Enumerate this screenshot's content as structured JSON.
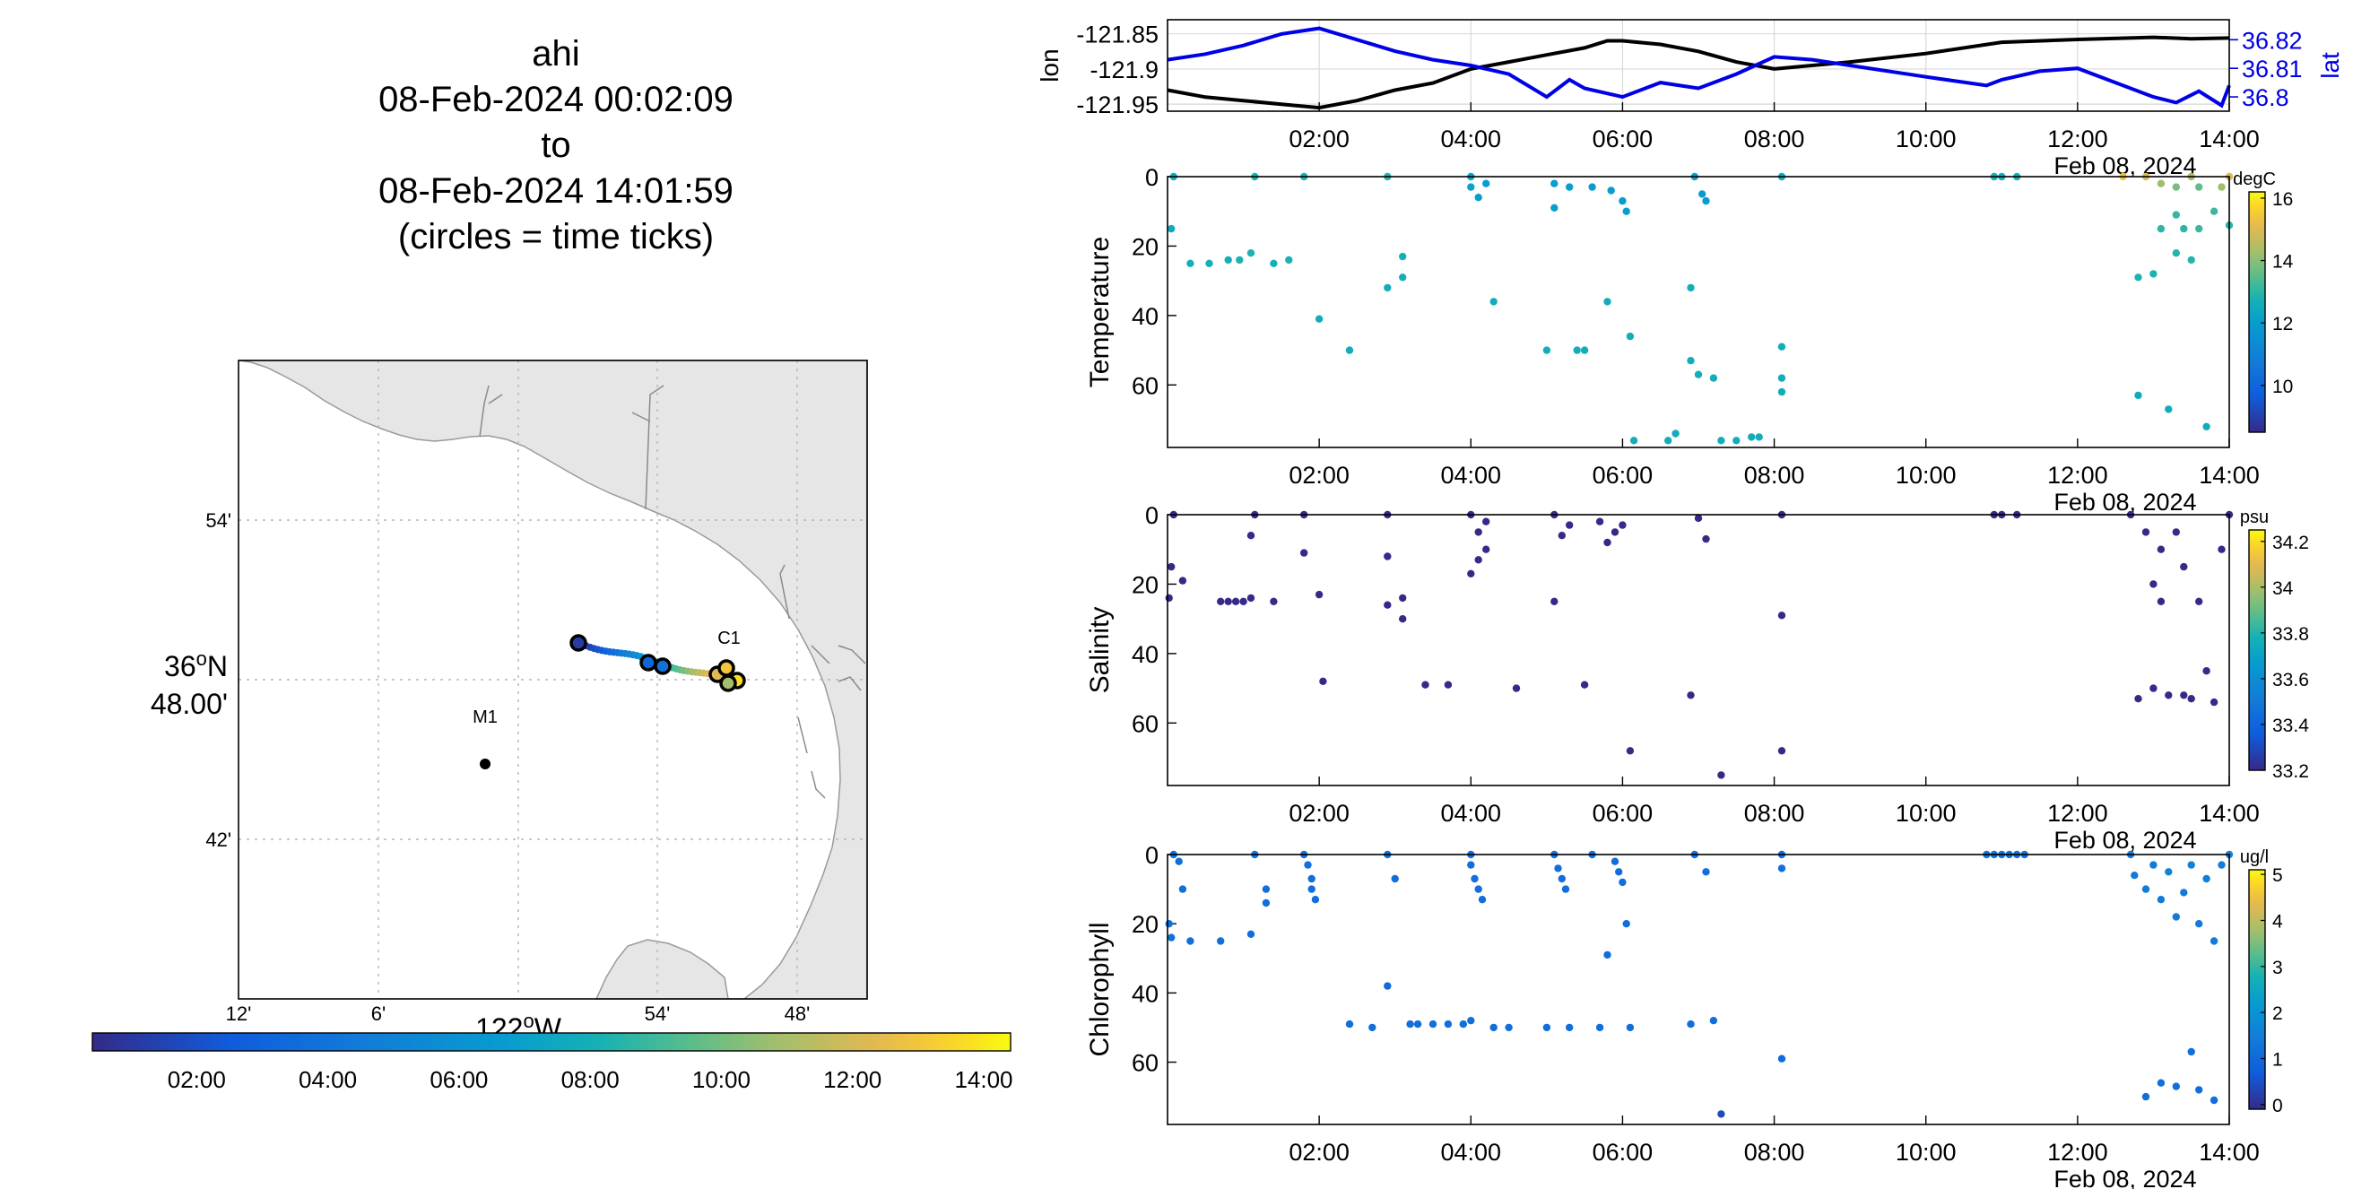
{
  "header": {
    "title_lines": [
      "ahi",
      "08-Feb-2024 00:02:09",
      "to",
      "08-Feb-2024 14:01:59",
      "(circles = time ticks)"
    ]
  },
  "map": {
    "lat_ticks": [
      "54'",
      "42'"
    ],
    "lat_center_label": "36",
    "lat_center_label_sup": "o",
    "lat_center_label_suffix": "N",
    "lat_center_minutes": "48.00'",
    "lon_ticks": [
      "12'",
      "6'",
      "54'",
      "48'"
    ],
    "lon_center_label": "122",
    "lon_center_label_sup": "o",
    "lon_center_label_suffix": "W",
    "stations": [
      {
        "name": "M1"
      },
      {
        "name": "C1"
      }
    ],
    "land_color": "#e6e6e6",
    "track_colormap": "parula"
  },
  "time_colorbar": {
    "ticks": [
      "02:00",
      "04:00",
      "06:00",
      "08:00",
      "10:00",
      "12:00",
      "14:00"
    ]
  },
  "date_label": "Feb 08, 2024",
  "chart_data": [
    {
      "type": "line",
      "x_unit": "hours since 08-Feb-2024 00:00",
      "xlim": [
        0,
        14
      ],
      "x_ticks": [
        "02:00",
        "04:00",
        "06:00",
        "08:00",
        "10:00",
        "12:00",
        "14:00"
      ],
      "ylabel_left": "lon",
      "ylabel_right": "lat",
      "left_ticks": [
        "-121.85",
        "-121.9",
        "-121.95"
      ],
      "right_ticks": [
        "36.82",
        "36.81",
        "36.8"
      ],
      "left_ylim": [
        -121.96,
        -121.83
      ],
      "right_ylim": [
        36.795,
        36.827
      ],
      "series": [
        {
          "axis": "left",
          "color": "#000000",
          "x": [
            0,
            0.5,
            1,
            1.5,
            2,
            2.5,
            3,
            3.5,
            4,
            4.5,
            5,
            5.5,
            5.8,
            6,
            6.5,
            7,
            7.5,
            8,
            8.5,
            9,
            10,
            11,
            12,
            13,
            13.5,
            14
          ],
          "y": [
            -121.93,
            -121.94,
            -121.945,
            -121.95,
            -121.955,
            -121.945,
            -121.93,
            -121.92,
            -121.9,
            -121.89,
            -121.88,
            -121.87,
            -121.86,
            -121.86,
            -121.865,
            -121.875,
            -121.89,
            -121.9,
            -121.895,
            -121.89,
            -121.878,
            -121.862,
            -121.858,
            -121.855,
            -121.857,
            -121.856
          ]
        },
        {
          "axis": "right",
          "color": "#0000e6",
          "x": [
            0,
            0.5,
            1,
            1.5,
            2,
            2.5,
            3,
            3.5,
            4,
            4.5,
            5,
            5.3,
            5.5,
            6,
            6.5,
            7,
            7.5,
            8,
            8.5,
            9,
            10,
            10.8,
            11,
            11.5,
            12,
            12.5,
            13,
            13.3,
            13.6,
            13.9,
            14
          ],
          "y": [
            36.813,
            36.815,
            36.818,
            36.822,
            36.824,
            36.82,
            36.816,
            36.813,
            36.811,
            36.808,
            36.8,
            36.806,
            36.803,
            36.8,
            36.805,
            36.803,
            36.808,
            36.814,
            36.813,
            36.811,
            36.807,
            36.804,
            36.806,
            36.809,
            36.81,
            36.805,
            36.8,
            36.798,
            36.802,
            36.797,
            36.804
          ]
        }
      ]
    },
    {
      "type": "scatter",
      "ylabel": "Temperature",
      "ylim": [
        78,
        0
      ],
      "y_ticks": [
        0,
        20,
        40,
        60
      ],
      "colorbar": {
        "unit": "degC",
        "ticks": [
          10,
          12,
          14,
          16
        ],
        "clim": [
          8.5,
          16.2
        ]
      },
      "points": [
        [
          0.05,
          15,
          12.5
        ],
        [
          0.08,
          0,
          12.6
        ],
        [
          0.3,
          25,
          12.7
        ],
        [
          0.55,
          25,
          12.7
        ],
        [
          0.8,
          24,
          12.7
        ],
        [
          0.95,
          24,
          12.8
        ],
        [
          1.1,
          22,
          12.8
        ],
        [
          1.15,
          0,
          12.8
        ],
        [
          1.4,
          25,
          12.7
        ],
        [
          1.6,
          24,
          12.8
        ],
        [
          1.8,
          0,
          12.8
        ],
        [
          2.0,
          41,
          12.6
        ],
        [
          2.4,
          50,
          12.6
        ],
        [
          2.9,
          0,
          12.9
        ],
        [
          2.9,
          32,
          12.6
        ],
        [
          3.1,
          23,
          12.7
        ],
        [
          3.1,
          29,
          12.6
        ],
        [
          4.0,
          0,
          12.2
        ],
        [
          4.0,
          3,
          12.2
        ],
        [
          4.1,
          6,
          12.0
        ],
        [
          4.2,
          2,
          12.0
        ],
        [
          4.3,
          36,
          12.6
        ],
        [
          5.0,
          50,
          12.6
        ],
        [
          5.1,
          2,
          12.0
        ],
        [
          5.1,
          9,
          12.0
        ],
        [
          5.3,
          3,
          12.0
        ],
        [
          5.4,
          50,
          12.6
        ],
        [
          5.5,
          50,
          12.6
        ],
        [
          5.6,
          3,
          12.0
        ],
        [
          5.8,
          36,
          12.6
        ],
        [
          5.85,
          4,
          12.0
        ],
        [
          6.0,
          7,
          12.0
        ],
        [
          6.05,
          10,
          12.0
        ],
        [
          6.1,
          46,
          12.6
        ],
        [
          6.15,
          76,
          12.6
        ],
        [
          6.6,
          76,
          12.6
        ],
        [
          6.7,
          74,
          12.6
        ],
        [
          6.9,
          32,
          12.6
        ],
        [
          6.9,
          53,
          12.6
        ],
        [
          6.95,
          0,
          12.2
        ],
        [
          7.0,
          57,
          12.6
        ],
        [
          7.05,
          5,
          12.0
        ],
        [
          7.1,
          7,
          12.0
        ],
        [
          7.2,
          58,
          12.6
        ],
        [
          7.3,
          76,
          12.6
        ],
        [
          7.5,
          76,
          12.6
        ],
        [
          7.7,
          75,
          12.6
        ],
        [
          7.8,
          75,
          12.6
        ],
        [
          8.1,
          0,
          12.4
        ],
        [
          8.1,
          49,
          12.6
        ],
        [
          8.1,
          58,
          12.6
        ],
        [
          8.1,
          62,
          12.6
        ],
        [
          10.9,
          0,
          12.7
        ],
        [
          11.0,
          0,
          12.7
        ],
        [
          11.2,
          0,
          12.7
        ],
        [
          12.6,
          0,
          15.4
        ],
        [
          12.8,
          29,
          12.8
        ],
        [
          12.8,
          63,
          12.5
        ],
        [
          12.9,
          0,
          15.0
        ],
        [
          13.0,
          28,
          12.8
        ],
        [
          13.1,
          2,
          14.2
        ],
        [
          13.1,
          15,
          13.0
        ],
        [
          13.2,
          67,
          12.5
        ],
        [
          13.3,
          3,
          13.8
        ],
        [
          13.3,
          11,
          13.1
        ],
        [
          13.3,
          22,
          12.9
        ],
        [
          13.4,
          15,
          13.0
        ],
        [
          13.5,
          0,
          14.3
        ],
        [
          13.5,
          24,
          12.9
        ],
        [
          13.6,
          3,
          13.6
        ],
        [
          13.6,
          15,
          13.2
        ],
        [
          13.7,
          72,
          12.5
        ],
        [
          13.8,
          10,
          13.2
        ],
        [
          13.9,
          3,
          14.2
        ],
        [
          14.0,
          0,
          15.0
        ],
        [
          14.0,
          14,
          13.0
        ]
      ]
    },
    {
      "type": "scatter",
      "ylabel": "Salinity",
      "ylim": [
        78,
        0
      ],
      "y_ticks": [
        0,
        20,
        40,
        60
      ],
      "colorbar": {
        "unit": "psu",
        "ticks": [
          33.2,
          33.4,
          33.6,
          33.8,
          34,
          34.2
        ],
        "clim": [
          33.2,
          34.25
        ]
      },
      "points": [
        [
          0.02,
          24,
          33.2
        ],
        [
          0.05,
          15,
          33.2
        ],
        [
          0.08,
          0,
          33.2
        ],
        [
          0.2,
          19,
          33.2
        ],
        [
          0.7,
          25,
          33.2
        ],
        [
          0.8,
          25,
          33.2
        ],
        [
          0.9,
          25,
          33.2
        ],
        [
          1.0,
          25,
          33.2
        ],
        [
          1.1,
          24,
          33.2
        ],
        [
          1.1,
          6,
          33.2
        ],
        [
          1.15,
          0,
          33.2
        ],
        [
          1.4,
          25,
          33.2
        ],
        [
          1.8,
          11,
          33.2
        ],
        [
          1.8,
          0,
          33.2
        ],
        [
          2.0,
          23,
          33.2
        ],
        [
          2.05,
          48,
          33.2
        ],
        [
          2.9,
          26,
          33.2
        ],
        [
          2.9,
          12,
          33.2
        ],
        [
          2.9,
          0,
          33.2
        ],
        [
          3.1,
          24,
          33.2
        ],
        [
          3.1,
          30,
          33.2
        ],
        [
          3.4,
          49,
          33.2
        ],
        [
          3.7,
          49,
          33.2
        ],
        [
          4.0,
          17,
          33.2
        ],
        [
          4.0,
          0,
          33.2
        ],
        [
          4.1,
          5,
          33.2
        ],
        [
          4.1,
          13,
          33.2
        ],
        [
          4.2,
          2,
          33.2
        ],
        [
          4.2,
          10,
          33.2
        ],
        [
          4.6,
          50,
          33.2
        ],
        [
          5.1,
          0,
          33.2
        ],
        [
          5.1,
          25,
          33.2
        ],
        [
          5.2,
          6,
          33.2
        ],
        [
          5.3,
          3,
          33.2
        ],
        [
          5.5,
          49,
          33.2
        ],
        [
          5.7,
          2,
          33.2
        ],
        [
          5.8,
          8,
          33.2
        ],
        [
          5.9,
          5,
          33.2
        ],
        [
          6.0,
          3,
          33.2
        ],
        [
          6.1,
          68,
          33.2
        ],
        [
          6.9,
          52,
          33.2
        ],
        [
          7.0,
          1,
          33.2
        ],
        [
          7.1,
          7,
          33.2
        ],
        [
          7.3,
          75,
          33.2
        ],
        [
          8.1,
          0,
          33.2
        ],
        [
          8.1,
          29,
          33.2
        ],
        [
          8.1,
          68,
          33.2
        ],
        [
          10.9,
          0,
          33.2
        ],
        [
          11.0,
          0,
          33.2
        ],
        [
          11.2,
          0,
          33.2
        ],
        [
          12.7,
          0,
          33.2
        ],
        [
          12.8,
          53,
          33.2
        ],
        [
          12.9,
          5,
          33.2
        ],
        [
          13.0,
          20,
          33.2
        ],
        [
          13.0,
          50,
          33.2
        ],
        [
          13.1,
          10,
          33.2
        ],
        [
          13.1,
          25,
          33.2
        ],
        [
          13.2,
          52,
          33.2
        ],
        [
          13.3,
          5,
          33.2
        ],
        [
          13.4,
          52,
          33.2
        ],
        [
          13.4,
          15,
          33.2
        ],
        [
          13.5,
          53,
          33.2
        ],
        [
          13.6,
          25,
          33.2
        ],
        [
          13.7,
          45,
          33.2
        ],
        [
          13.8,
          54,
          33.2
        ],
        [
          13.9,
          10,
          33.2
        ],
        [
          14.0,
          0,
          33.2
        ]
      ]
    },
    {
      "type": "scatter",
      "ylabel": "Chlorophyll",
      "ylim": [
        78,
        0
      ],
      "y_ticks": [
        0,
        20,
        40,
        60
      ],
      "colorbar": {
        "unit": "ug/l",
        "ticks": [
          0,
          1,
          2,
          3,
          4,
          5
        ],
        "clim": [
          -0.1,
          5.1
        ]
      },
      "points": [
        [
          0.02,
          20,
          1.2
        ],
        [
          0.05,
          24,
          1.2
        ],
        [
          0.08,
          0,
          1.1
        ],
        [
          0.15,
          2,
          1.1
        ],
        [
          0.2,
          10,
          1.1
        ],
        [
          0.3,
          25,
          1.1
        ],
        [
          0.7,
          25,
          1.1
        ],
        [
          1.1,
          23,
          1.1
        ],
        [
          1.15,
          0,
          1.1
        ],
        [
          1.3,
          10,
          1.1
        ],
        [
          1.3,
          14,
          1.1
        ],
        [
          1.8,
          0,
          1.1
        ],
        [
          1.85,
          3,
          1.1
        ],
        [
          1.9,
          7,
          1.1
        ],
        [
          1.9,
          10,
          1.1
        ],
        [
          1.95,
          13,
          1.1
        ],
        [
          2.9,
          38,
          1.0
        ],
        [
          2.9,
          0,
          1.1
        ],
        [
          3.0,
          7,
          1.1
        ],
        [
          2.4,
          49,
          1.1
        ],
        [
          2.7,
          50,
          1.1
        ],
        [
          3.2,
          49,
          1.1
        ],
        [
          3.3,
          49,
          1.1
        ],
        [
          3.5,
          49,
          1.1
        ],
        [
          3.7,
          49,
          1.1
        ],
        [
          3.9,
          49,
          1.1
        ],
        [
          4.0,
          48,
          1.1
        ],
        [
          4.0,
          0,
          1.1
        ],
        [
          4.0,
          3,
          1.1
        ],
        [
          4.05,
          7,
          1.1
        ],
        [
          4.1,
          10,
          1.1
        ],
        [
          4.15,
          13,
          1.1
        ],
        [
          4.3,
          50,
          1.1
        ],
        [
          4.5,
          50,
          1.1
        ],
        [
          5.0,
          50,
          1.1
        ],
        [
          5.1,
          0,
          1.1
        ],
        [
          5.15,
          4,
          1.1
        ],
        [
          5.2,
          7,
          1.1
        ],
        [
          5.25,
          10,
          1.1
        ],
        [
          5.3,
          50,
          1.1
        ],
        [
          5.6,
          0,
          1.1
        ],
        [
          5.7,
          50,
          1.1
        ],
        [
          5.8,
          29,
          1.1
        ],
        [
          5.9,
          2,
          1.1
        ],
        [
          5.95,
          5,
          1.1
        ],
        [
          6.0,
          8,
          1.1
        ],
        [
          6.05,
          20,
          1.1
        ],
        [
          6.1,
          50,
          1.1
        ],
        [
          6.9,
          49,
          1.1
        ],
        [
          6.95,
          0,
          1.1
        ],
        [
          7.1,
          5,
          1.1
        ],
        [
          7.2,
          48,
          1.1
        ],
        [
          7.3,
          75,
          0.4
        ],
        [
          8.1,
          0,
          1.1
        ],
        [
          8.1,
          4,
          1.1
        ],
        [
          8.1,
          59,
          1.0
        ],
        [
          10.8,
          0,
          1.2
        ],
        [
          10.9,
          0,
          1.2
        ],
        [
          11.0,
          0,
          1.2
        ],
        [
          11.1,
          0,
          1.2
        ],
        [
          11.2,
          0,
          1.2
        ],
        [
          11.3,
          0,
          1.2
        ],
        [
          12.7,
          0,
          1.4
        ],
        [
          12.75,
          6,
          1.4
        ],
        [
          12.9,
          70,
          1.1
        ],
        [
          12.9,
          10,
          1.4
        ],
        [
          13.0,
          3,
          1.4
        ],
        [
          13.1,
          66,
          1.1
        ],
        [
          13.1,
          13,
          1.4
        ],
        [
          13.2,
          5,
          1.6
        ],
        [
          13.3,
          67,
          1.1
        ],
        [
          13.3,
          18,
          1.4
        ],
        [
          13.4,
          11,
          1.4
        ],
        [
          13.5,
          3,
          1.6
        ],
        [
          13.5,
          57,
          1.1
        ],
        [
          13.6,
          20,
          1.4
        ],
        [
          13.6,
          68,
          1.1
        ],
        [
          13.7,
          7,
          1.5
        ],
        [
          13.8,
          71,
          1.1
        ],
        [
          13.8,
          25,
          1.4
        ],
        [
          13.9,
          3,
          1.5
        ],
        [
          14.0,
          0,
          1.6
        ]
      ]
    }
  ]
}
